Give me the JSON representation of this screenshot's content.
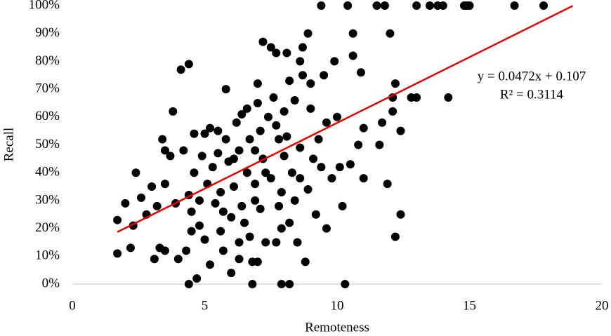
{
  "chart_data": {
    "type": "scatter",
    "x_label": "Remoteness",
    "y_label": "Recall",
    "equation": "y = 0.0472x + 0.107",
    "r_squared": "R² = 0.3114",
    "color": "#000000",
    "x": [
      9.4,
      10.4,
      11.5,
      11.8,
      13.0,
      13.5,
      13.8,
      14.0,
      14.8,
      14.9,
      15.0,
      16.7,
      17.8,
      12.0,
      10.6,
      8.9,
      12.8,
      14.2,
      13.0,
      12.4,
      12.4,
      12.2,
      11.9,
      12.1,
      12.2,
      12.1,
      11.7,
      11.0,
      11.6,
      10.8,
      11.0,
      10.2,
      10.3,
      9.6,
      9.2,
      10.5,
      10.0,
      10.6,
      10.9,
      9.9,
      9.5,
      8.7,
      8.6,
      7.5,
      7.7,
      8.1,
      7.2,
      7.0,
      4.4,
      4.1,
      5.8,
      3.8,
      7.9,
      8.2,
      6.8,
      4.4,
      4.7,
      1.7,
      1.7,
      2.0,
      2.3,
      2.2,
      2.4,
      2.6,
      2.8,
      3.1,
      3.3,
      3.5,
      3.5,
      3.5,
      3.4,
      3.7,
      3.0,
      3.2,
      3.9,
      4.0,
      4.3,
      4.5,
      4.8,
      4.4,
      4.6,
      4.9,
      5.0,
      5.2,
      5.4,
      5.2,
      5.7,
      6.0,
      6.3,
      6.7,
      6.8,
      7.0,
      7.3,
      7.7,
      7.9,
      8.5,
      8.8,
      8.2,
      6.1,
      6.4,
      6.6,
      6.9,
      7.1,
      7.4,
      7.8,
      8.0,
      8.3,
      8.6,
      8.9,
      9.1,
      9.3,
      9.6,
      9.0,
      8.4,
      7.6,
      6.6,
      6.2,
      5.8,
      5.5,
      5.3,
      5.1,
      4.8,
      6.3,
      6.7,
      7.2,
      7.5,
      7.9,
      6.0,
      6.5,
      7.1,
      5.6,
      5.9,
      6.9,
      7.7,
      8.1,
      8.6,
      9.4,
      9.8,
      10.1,
      9.0,
      8.7,
      8.2,
      6.1,
      5.7,
      4.5,
      4.2,
      4.6,
      6.9,
      7.3,
      7.8,
      8.4,
      6.4,
      7.0,
      8.0,
      5.5,
      5.0,
      5.6,
      6.3
    ],
    "values": [
      100,
      100,
      100,
      100,
      100,
      100,
      100,
      100,
      100,
      100,
      100,
      100,
      100,
      90,
      90,
      90,
      67,
      67,
      67,
      55,
      25,
      17,
      36,
      62,
      72,
      67,
      58,
      56,
      50,
      50,
      38,
      28,
      0,
      20,
      25,
      43,
      60,
      82,
      76,
      80,
      75,
      85,
      80,
      85,
      83,
      83,
      87,
      72,
      79,
      77,
      70,
      62,
      0,
      0,
      0,
      0,
      2,
      11,
      23,
      29,
      21,
      13,
      40,
      31,
      25,
      9,
      13,
      12,
      36,
      48,
      52,
      46,
      35,
      28,
      29,
      9,
      12,
      19,
      21,
      32,
      40,
      46,
      54,
      56,
      29,
      7,
      12,
      4,
      9,
      17,
      8,
      8,
      15,
      15,
      20,
      15,
      8,
      22,
      35,
      28,
      40,
      48,
      55,
      60,
      52,
      46,
      40,
      38,
      34,
      45,
      52,
      58,
      63,
      66,
      67,
      63,
      58,
      52,
      47,
      42,
      36,
      30,
      48,
      52,
      45,
      38,
      33,
      24,
      22,
      27,
      33,
      44,
      36,
      57,
      53,
      49,
      42,
      38,
      42,
      72,
      75,
      73,
      45,
      26,
      26,
      48,
      54,
      30,
      40,
      28,
      30,
      61,
      65,
      62,
      55,
      16,
      19,
      15
    ],
    "trendline": {
      "x": [
        1.7,
        18.9
      ],
      "values": [
        18.7,
        99.9
      ],
      "color": "#e00000"
    },
    "xlim": [
      0,
      20
    ],
    "xticks": [
      0,
      5,
      10,
      15,
      20
    ],
    "ylim": [
      0,
      100
    ],
    "yticks": [
      {
        "value": 0,
        "label": "0%"
      },
      {
        "value": 10,
        "label": "10%"
      },
      {
        "value": 20,
        "label": "20%"
      },
      {
        "value": 30,
        "label": "30%"
      },
      {
        "value": 40,
        "label": "40%"
      },
      {
        "value": 50,
        "label": "50%"
      },
      {
        "value": 60,
        "label": "60%"
      },
      {
        "value": 70,
        "label": "70%"
      },
      {
        "value": 80,
        "label": "80%"
      },
      {
        "value": 90,
        "label": "90%"
      },
      {
        "value": 100,
        "label": "100%"
      }
    ]
  }
}
